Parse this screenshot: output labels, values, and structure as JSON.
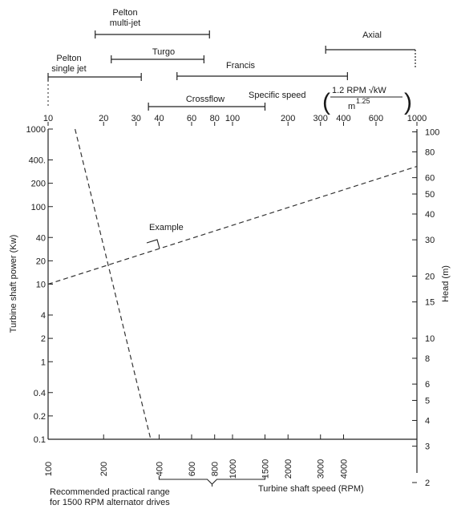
{
  "chart_data": {
    "type": "line",
    "title": "",
    "left_axis": {
      "label": "Turbine shaft power (Kw)",
      "scale": "log",
      "range": [
        0.1,
        1000
      ],
      "ticks": [
        {
          "value": 1000,
          "label": "1000"
        },
        {
          "value": 400,
          "label": "400."
        },
        {
          "value": 200,
          "label": "200"
        },
        {
          "value": 100,
          "label": "100"
        },
        {
          "value": 40,
          "label": "40"
        },
        {
          "value": 20,
          "label": "20"
        },
        {
          "value": 10,
          "label": "10"
        },
        {
          "value": 4,
          "label": "4"
        },
        {
          "value": 2,
          "label": "2"
        },
        {
          "value": 1,
          "label": "1"
        },
        {
          "value": 0.4,
          "label": "0.4"
        },
        {
          "value": 0.2,
          "label": "0.2"
        },
        {
          "value": 0.1,
          "label": "0.1"
        }
      ]
    },
    "right_axis": {
      "label": "Head (m)",
      "scale": "log",
      "range": [
        2,
        100
      ],
      "ticks": [
        {
          "value": 100,
          "label": "100"
        },
        {
          "value": 80,
          "label": "80"
        },
        {
          "value": 60,
          "label": "60"
        },
        {
          "value": 50,
          "label": "50"
        },
        {
          "value": 40,
          "label": "40"
        },
        {
          "value": 30,
          "label": "30"
        },
        {
          "value": 20,
          "label": "20"
        },
        {
          "value": 15,
          "label": "15"
        },
        {
          "value": 10,
          "label": "10"
        },
        {
          "value": 8,
          "label": "8"
        },
        {
          "value": 6,
          "label": "6"
        },
        {
          "value": 5,
          "label": "5"
        },
        {
          "value": 4,
          "label": "4"
        },
        {
          "value": 3,
          "label": "3"
        },
        {
          "value": 2,
          "label": "2"
        }
      ]
    },
    "top_axis": {
      "label": "Specific speed",
      "formula_numerator": "1.2   RPM √kW",
      "formula_denominator": "m",
      "formula_exponent": "1.25",
      "scale": "log",
      "range": [
        10,
        1000
      ],
      "ticks": [
        {
          "value": 10,
          "label": "10"
        },
        {
          "value": 20,
          "label": "20"
        },
        {
          "value": 30,
          "label": "30"
        },
        {
          "value": 40,
          "label": "40"
        },
        {
          "value": 60,
          "label": "60"
        },
        {
          "value": 80,
          "label": "80"
        },
        {
          "value": 100,
          "label": "100"
        },
        {
          "value": 200,
          "label": "200"
        },
        {
          "value": 300,
          "label": "300"
        },
        {
          "value": 400,
          "label": "400"
        },
        {
          "value": 600,
          "label": "600"
        },
        {
          "value": 1000,
          "label": "1000"
        }
      ]
    },
    "bottom_axis": {
      "label": "Turbine shaft speed (RPM)",
      "scale": "log",
      "range": [
        100,
        10000
      ],
      "ticks": [
        {
          "value": 100,
          "label": "100"
        },
        {
          "value": 200,
          "label": "200"
        },
        {
          "value": 400,
          "label": "400"
        },
        {
          "value": 600,
          "label": "600"
        },
        {
          "value": 800,
          "label": "800"
        },
        {
          "value": 1000,
          "label": "1000"
        },
        {
          "value": 1500,
          "label": "1500"
        },
        {
          "value": 2000,
          "label": "2000"
        },
        {
          "value": 3000,
          "label": "3000"
        },
        {
          "value": 4000,
          "label": "4000"
        }
      ]
    },
    "turbine_ranges": [
      {
        "name": "Pelton multi-jet",
        "label_lines": [
          "Pelton",
          "multi-jet"
        ],
        "from": 18,
        "to": 75
      },
      {
        "name": "Turgo",
        "label_lines": [
          "Turgo"
        ],
        "from": 22,
        "to": 70
      },
      {
        "name": "Pelton single jet",
        "label_lines": [
          "Pelton",
          "single jet"
        ],
        "from": 10,
        "to": 32
      },
      {
        "name": "Francis",
        "label_lines": [
          "Francis"
        ],
        "from": 50,
        "to": 420
      },
      {
        "name": "Axial",
        "label_lines": [
          "Axial"
        ],
        "from": 320,
        "to": 1000
      },
      {
        "name": "Crossflow",
        "label_lines": [
          "Crossflow"
        ],
        "from": 35,
        "to": 150
      }
    ],
    "lines": [
      {
        "name": "power",
        "axis": "left",
        "points": [
          {
            "x": 14,
            "y": 1000
          },
          {
            "x": 36,
            "y": 0.1
          }
        ]
      },
      {
        "name": "head",
        "axis": "left",
        "points": [
          {
            "x": 10,
            "y": 10
          },
          {
            "x": 1000,
            "y": 330
          }
        ]
      }
    ],
    "annotations": [
      {
        "text": "Example"
      },
      {
        "text_lines": [
          "Recommended practical range",
          "for 1500 RPM alternator drives"
        ],
        "rpm_from": 400,
        "rpm_to": 1500
      }
    ]
  }
}
